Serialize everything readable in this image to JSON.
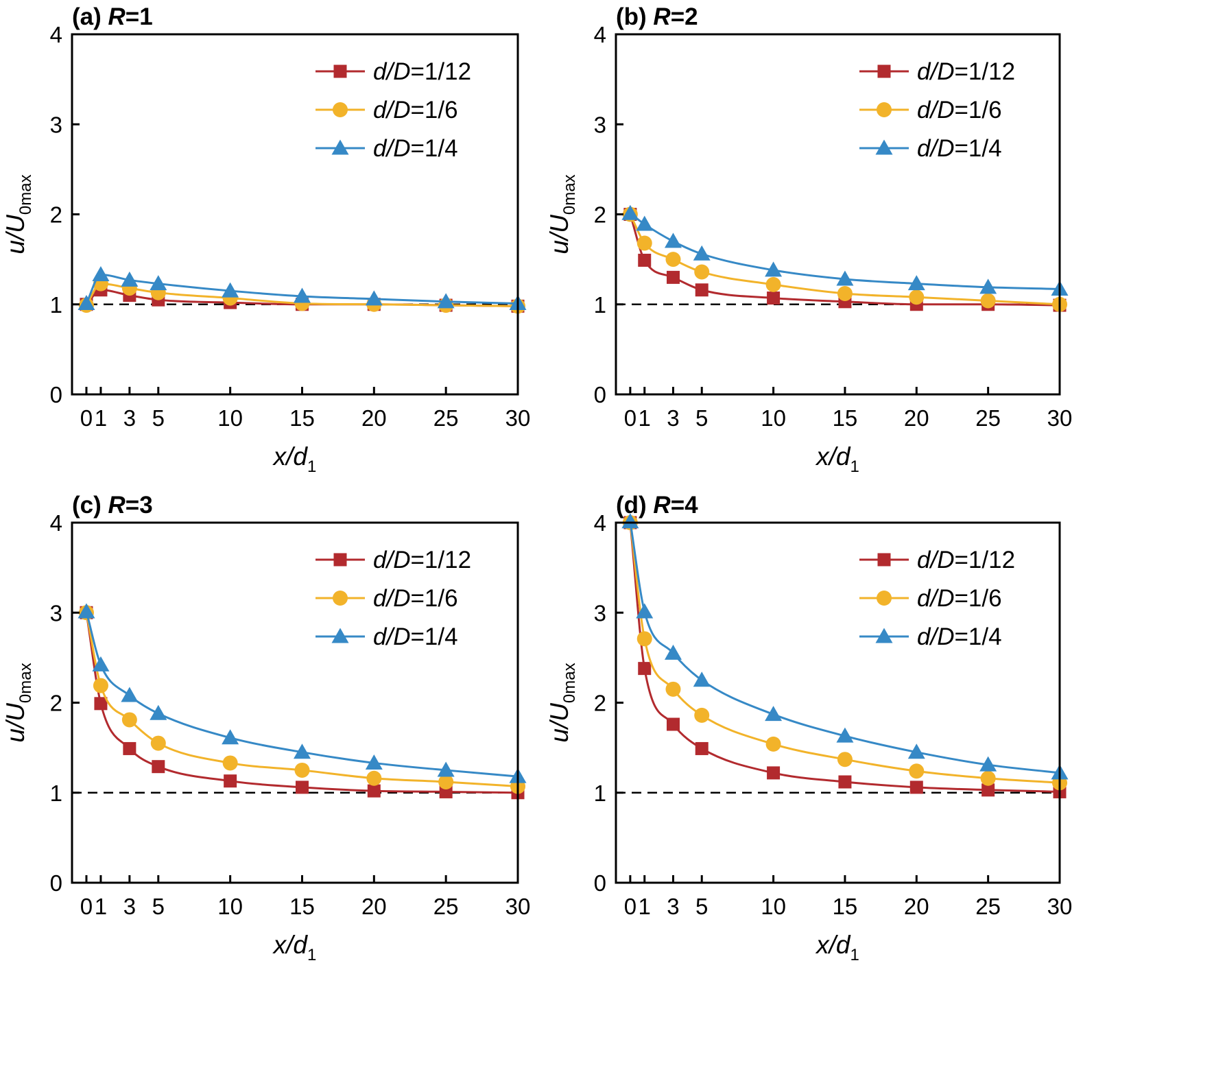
{
  "colors": {
    "d/D=1/12": "#b22a2e",
    "d/D=1/6": "#f2b32a",
    "d/D=1/4": "#3689c6"
  },
  "chart_data": [
    {
      "type": "line",
      "title_prefix": "(a) ",
      "title_var": "R",
      "title_suffix": "=1",
      "xlabel": "x/d",
      "xlabel_sub": "1",
      "ylabel": "u/U",
      "ylabel_sub": "0max",
      "xlim": [
        -1,
        30
      ],
      "ylim": [
        0,
        4
      ],
      "xticks": [
        0,
        1,
        3,
        5,
        10,
        15,
        20,
        25,
        30
      ],
      "yticks": [
        0,
        1,
        2,
        3,
        4
      ],
      "reference_line": 1,
      "x": [
        0,
        1,
        3,
        5,
        10,
        15,
        20,
        25,
        30
      ],
      "series": [
        {
          "name": "d/D=1/12",
          "legend_var": "d/D",
          "legend_val": "=1/12",
          "marker": "square",
          "values": [
            1.0,
            1.16,
            1.1,
            1.05,
            1.02,
            1.0,
            1.0,
            0.99,
            0.98
          ]
        },
        {
          "name": "d/D=1/6",
          "legend_var": "d/D",
          "legend_val": "=1/6",
          "marker": "circle",
          "values": [
            0.99,
            1.23,
            1.18,
            1.13,
            1.07,
            1.01,
            1.0,
            0.99,
            0.98
          ]
        },
        {
          "name": "d/D=1/4",
          "legend_var": "d/D",
          "legend_val": "=1/4",
          "marker": "triangle",
          "values": [
            1.01,
            1.33,
            1.27,
            1.23,
            1.15,
            1.09,
            1.06,
            1.03,
            1.01
          ]
        }
      ]
    },
    {
      "type": "line",
      "title_prefix": "(b) ",
      "title_var": "R",
      "title_suffix": "=2",
      "xlabel": "x/d",
      "xlabel_sub": "1",
      "ylabel": "u/U",
      "ylabel_sub": "0max",
      "xlim": [
        -1,
        30
      ],
      "ylim": [
        0,
        4
      ],
      "xticks": [
        0,
        1,
        3,
        5,
        10,
        15,
        20,
        25,
        30
      ],
      "yticks": [
        0,
        1,
        2,
        3,
        4
      ],
      "reference_line": 1,
      "x": [
        0,
        1,
        3,
        5,
        10,
        15,
        20,
        25,
        30
      ],
      "series": [
        {
          "name": "d/D=1/12",
          "legend_var": "d/D",
          "legend_val": "=1/12",
          "marker": "square",
          "values": [
            2.0,
            1.49,
            1.3,
            1.16,
            1.07,
            1.03,
            1.0,
            1.0,
            0.99
          ]
        },
        {
          "name": "d/D=1/6",
          "legend_var": "d/D",
          "legend_val": "=1/6",
          "marker": "circle",
          "values": [
            2.0,
            1.68,
            1.5,
            1.36,
            1.22,
            1.12,
            1.08,
            1.04,
            1.0
          ]
        },
        {
          "name": "d/D=1/4",
          "legend_var": "d/D",
          "legend_val": "=1/4",
          "marker": "triangle",
          "values": [
            2.01,
            1.89,
            1.7,
            1.56,
            1.38,
            1.28,
            1.23,
            1.19,
            1.17
          ]
        }
      ]
    },
    {
      "type": "line",
      "title_prefix": "(c) ",
      "title_var": "R",
      "title_suffix": "=3",
      "xlabel": "x/d",
      "xlabel_sub": "1",
      "ylabel": "u/U",
      "ylabel_sub": "0max",
      "xlim": [
        -1,
        30
      ],
      "ylim": [
        0,
        4
      ],
      "xticks": [
        0,
        1,
        3,
        5,
        10,
        15,
        20,
        25,
        30
      ],
      "yticks": [
        0,
        1,
        2,
        3,
        4
      ],
      "reference_line": 1,
      "x": [
        0,
        1,
        3,
        5,
        10,
        15,
        20,
        25,
        30
      ],
      "series": [
        {
          "name": "d/D=1/12",
          "legend_var": "d/D",
          "legend_val": "=1/12",
          "marker": "square",
          "values": [
            3.0,
            1.99,
            1.49,
            1.29,
            1.13,
            1.06,
            1.02,
            1.01,
            1.0
          ]
        },
        {
          "name": "d/D=1/6",
          "legend_var": "d/D",
          "legend_val": "=1/6",
          "marker": "circle",
          "values": [
            3.0,
            2.19,
            1.81,
            1.55,
            1.33,
            1.25,
            1.16,
            1.12,
            1.07
          ]
        },
        {
          "name": "d/D=1/4",
          "legend_var": "d/D",
          "legend_val": "=1/4",
          "marker": "triangle",
          "values": [
            3.01,
            2.42,
            2.08,
            1.88,
            1.61,
            1.45,
            1.33,
            1.25,
            1.18
          ]
        }
      ]
    },
    {
      "type": "line",
      "title_prefix": "(d) ",
      "title_var": "R",
      "title_suffix": "=4",
      "xlabel": "x/d",
      "xlabel_sub": "1",
      "ylabel": "u/U",
      "ylabel_sub": "0max",
      "xlim": [
        -1,
        30
      ],
      "ylim": [
        0,
        4
      ],
      "xticks": [
        0,
        1,
        3,
        5,
        10,
        15,
        20,
        25,
        30
      ],
      "yticks": [
        0,
        1,
        2,
        3,
        4
      ],
      "reference_line": 1,
      "x": [
        0,
        1,
        3,
        5,
        10,
        15,
        20,
        25,
        30
      ],
      "series": [
        {
          "name": "d/D=1/12",
          "legend_var": "d/D",
          "legend_val": "=1/12",
          "marker": "square",
          "values": [
            4.0,
            2.38,
            1.76,
            1.49,
            1.22,
            1.12,
            1.06,
            1.03,
            1.01
          ]
        },
        {
          "name": "d/D=1/6",
          "legend_var": "d/D",
          "legend_val": "=1/6",
          "marker": "circle",
          "values": [
            4.0,
            2.71,
            2.15,
            1.86,
            1.54,
            1.37,
            1.24,
            1.16,
            1.11
          ]
        },
        {
          "name": "d/D=1/4",
          "legend_var": "d/D",
          "legend_val": "=1/4",
          "marker": "triangle",
          "values": [
            4.01,
            3.01,
            2.55,
            2.25,
            1.87,
            1.63,
            1.45,
            1.31,
            1.22
          ]
        }
      ]
    }
  ]
}
